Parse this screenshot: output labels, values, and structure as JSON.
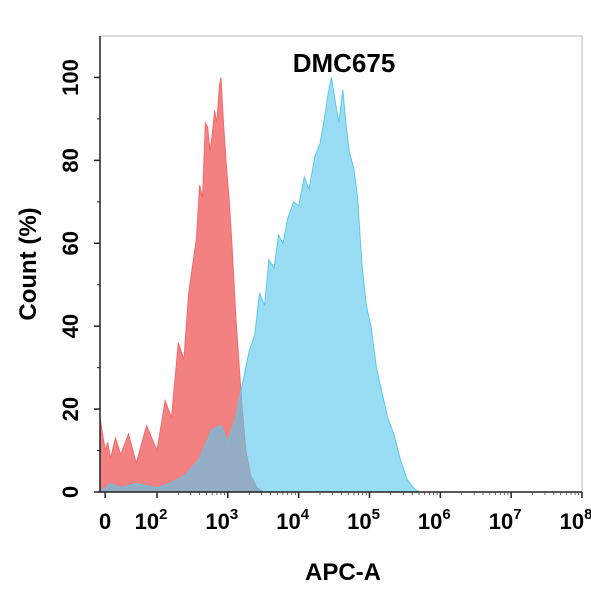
{
  "chart_data": {
    "type": "area",
    "title": "DMC675",
    "xlabel": "APC-A",
    "ylabel": "Count  (%)",
    "xscale": "biexponential",
    "xlim": [
      -10,
      100000000
    ],
    "ylim": [
      0,
      110
    ],
    "grid": false,
    "legend": "none",
    "x_ticks": [
      {
        "value": 0,
        "base": "0",
        "exp": ""
      },
      {
        "value": 100,
        "base": "10",
        "exp": "2"
      },
      {
        "value": 1000,
        "base": "10",
        "exp": "3"
      },
      {
        "value": 10000,
        "base": "10",
        "exp": "4"
      },
      {
        "value": 100000,
        "base": "10",
        "exp": "5"
      },
      {
        "value": 1000000,
        "base": "10",
        "exp": "6"
      },
      {
        "value": 10000000,
        "base": "10",
        "exp": "7"
      },
      {
        "value": 100000000,
        "base": "10",
        "exp": "8"
      }
    ],
    "y_ticks": [
      0,
      20,
      40,
      60,
      80,
      100
    ],
    "series": [
      {
        "color": "#f26b6b",
        "points": [
          [
            -10,
            18
          ],
          [
            -5,
            14
          ],
          [
            0,
            10
          ],
          [
            5,
            12
          ],
          [
            10,
            8
          ],
          [
            20,
            13
          ],
          [
            30,
            9
          ],
          [
            45,
            14
          ],
          [
            60,
            7
          ],
          [
            80,
            16
          ],
          [
            100,
            10
          ],
          [
            130,
            22
          ],
          [
            160,
            18
          ],
          [
            200,
            36
          ],
          [
            240,
            32
          ],
          [
            280,
            48
          ],
          [
            320,
            55
          ],
          [
            360,
            61
          ],
          [
            400,
            74
          ],
          [
            440,
            71
          ],
          [
            480,
            89
          ],
          [
            520,
            88
          ],
          [
            560,
            82
          ],
          [
            600,
            86
          ],
          [
            650,
            92
          ],
          [
            700,
            89
          ],
          [
            760,
            98
          ],
          [
            800,
            100
          ],
          [
            860,
            90
          ],
          [
            950,
            79
          ],
          [
            1050,
            70
          ],
          [
            1150,
            59
          ],
          [
            1300,
            42
          ],
          [
            1450,
            30
          ],
          [
            1600,
            20
          ],
          [
            1800,
            10
          ],
          [
            2100,
            4
          ],
          [
            2600,
            1
          ],
          [
            3200,
            0
          ]
        ]
      },
      {
        "color": "#5bc8ee",
        "points": [
          [
            -10,
            0
          ],
          [
            0,
            1
          ],
          [
            10,
            2
          ],
          [
            30,
            1
          ],
          [
            60,
            2
          ],
          [
            100,
            1
          ],
          [
            150,
            2
          ],
          [
            250,
            4
          ],
          [
            400,
            8
          ],
          [
            600,
            15
          ],
          [
            800,
            16
          ],
          [
            1000,
            12
          ],
          [
            1300,
            18
          ],
          [
            1600,
            26
          ],
          [
            2000,
            34
          ],
          [
            2400,
            38
          ],
          [
            2800,
            48
          ],
          [
            3300,
            45
          ],
          [
            3800,
            56
          ],
          [
            4500,
            54
          ],
          [
            5200,
            62
          ],
          [
            6000,
            60
          ],
          [
            7000,
            66
          ],
          [
            8500,
            70
          ],
          [
            10000,
            69
          ],
          [
            12000,
            76
          ],
          [
            14000,
            73
          ],
          [
            17000,
            81
          ],
          [
            20000,
            84
          ],
          [
            23000,
            90
          ],
          [
            26000,
            96
          ],
          [
            29000,
            100
          ],
          [
            33000,
            94
          ],
          [
            37000,
            89
          ],
          [
            42000,
            97
          ],
          [
            47000,
            88
          ],
          [
            52000,
            82
          ],
          [
            60000,
            78
          ],
          [
            68000,
            71
          ],
          [
            78000,
            55
          ],
          [
            90000,
            45
          ],
          [
            105000,
            40
          ],
          [
            125000,
            30
          ],
          [
            150000,
            24
          ],
          [
            180000,
            18
          ],
          [
            220000,
            14
          ],
          [
            270000,
            8
          ],
          [
            340000,
            3
          ],
          [
            420000,
            1
          ],
          [
            500000,
            0
          ]
        ]
      }
    ]
  }
}
